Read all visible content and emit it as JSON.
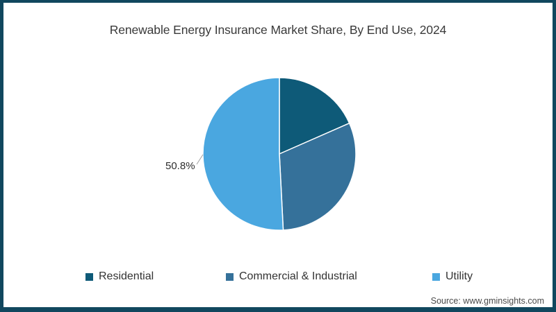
{
  "chart_data": {
    "type": "pie",
    "title": "Renewable Energy Insurance Market Share, By End Use, 2024",
    "slices": [
      {
        "label": "Residential",
        "value": 18.4,
        "color": "#0e5a78"
      },
      {
        "label": "Commercial & Industrial",
        "value": 30.8,
        "color": "#35719a"
      },
      {
        "label": "Utility",
        "value": 50.8,
        "color": "#4aa7e0"
      }
    ],
    "start_angle_deg": 0,
    "direction": "clockwise",
    "data_labels": [
      {
        "text": "50.8%",
        "slice": "Utility",
        "position": "left-of-pie"
      }
    ],
    "legend_position": "bottom",
    "frame_border_color": "#11475e",
    "slice_separator_color": "#ffffff"
  },
  "footer": {
    "source": "Source: www.gminsights.com"
  }
}
